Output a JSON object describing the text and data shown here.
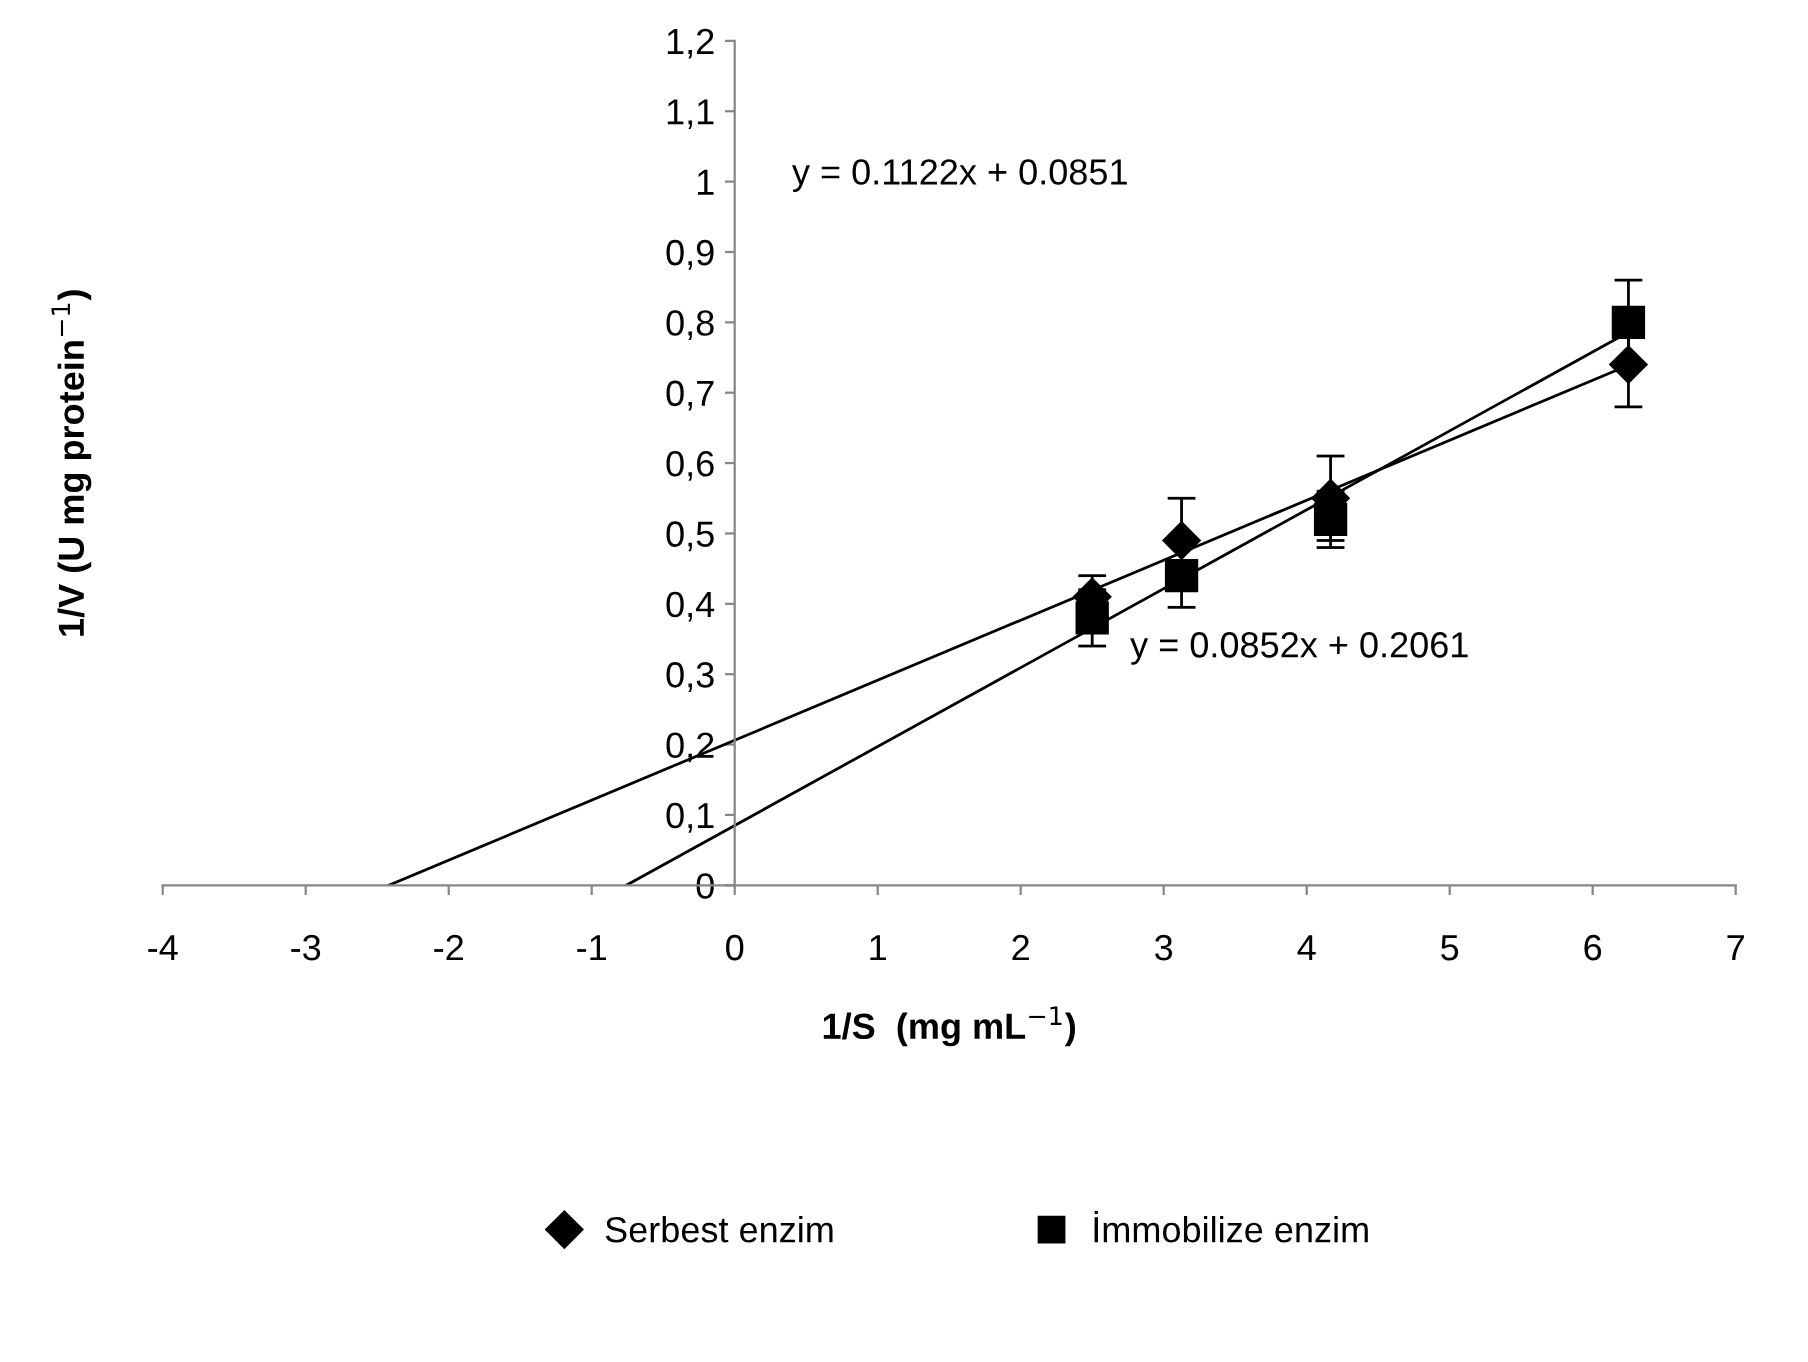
{
  "chart_data": {
    "type": "scatter",
    "xlabel": "1/S  (mg mL$^{−1}$)",
    "ylabel": "1/V (U mg protein$^{−1}$)",
    "series": [
      {
        "name": "Serbest enzim",
        "color": "#000000",
        "marker": "diamond",
        "x": [
          2.5,
          3.125,
          4.167,
          6.25
        ],
        "values": [
          0.41,
          0.49,
          0.55,
          0.74
        ],
        "errors": [
          0.03,
          0.06,
          0.06,
          0.06
        ]
      },
      {
        "name": "İmmobilize enzim",
        "color": "#000000",
        "marker": "square",
        "x": [
          2.5,
          3.125,
          4.167,
          6.25
        ],
        "values": [
          0.38,
          0.44,
          0.52,
          0.8
        ],
        "errors": [
          0.04,
          0.045,
          0.04,
          0.06
        ]
      },
      {
        "type": "line",
        "color": "#000000",
        "x": [
          -2.419,
          6.25
        ],
        "values": [
          0,
          0.739
        ]
      },
      {
        "type": "line",
        "color": "#000000",
        "x": [
          -0.758,
          6.25
        ],
        "values": [
          0,
          0.786
        ]
      }
    ],
    "annotations": [
      "y = 0.1122x + 0.0851",
      "y = 0.0852x + 0.2061"
    ],
    "xlim": [
      -4,
      7
    ],
    "xticks": [
      -4,
      -3,
      -2,
      -1,
      0,
      1,
      2,
      3,
      4,
      5,
      6,
      7
    ],
    "ylim": [
      0,
      1.2
    ],
    "yticks": [
      0,
      {
        "value": 0.1,
        "label": "0,1"
      },
      {
        "value": 0.2,
        "label": "0,2"
      },
      {
        "value": 0.3,
        "label": "0,3"
      },
      {
        "value": 0.4,
        "label": "0,4"
      },
      {
        "value": 0.5,
        "label": "0,5"
      },
      {
        "value": 0.6,
        "label": "0,6"
      },
      {
        "value": 0.7,
        "label": "0,7"
      },
      {
        "value": 0.8,
        "label": "0,8"
      },
      {
        "value": 0.9,
        "label": "0,9"
      },
      1,
      {
        "value": 1.1,
        "label": "1,1"
      },
      {
        "value": 1.2,
        "label": "1,2"
      }
    ],
    "grid": false,
    "legend": "bottom"
  }
}
